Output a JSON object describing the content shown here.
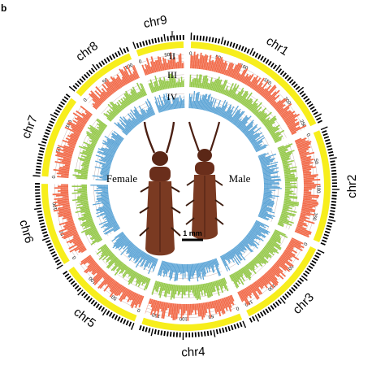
{
  "panel_letter": "b",
  "track_labels": [
    "I",
    "II",
    "III",
    "IV"
  ],
  "sex_labels": {
    "female": "Female",
    "male": "Male"
  },
  "scale_bar_label": "1 mm",
  "colors": {
    "track_I": "#f7ee1c",
    "track_II": "#f26b4a",
    "track_III": "#95c94a",
    "track_IV": "#5ba4d6",
    "grid": "#9d7a78",
    "ticks": "#000000",
    "beetle_body": "#7a3a22",
    "beetle_dark": "#4b1f12"
  },
  "chromosomes": [
    {
      "name": "chr1",
      "length": 260,
      "labels": [
        "0",
        "50",
        "100",
        "150",
        "200",
        "250"
      ]
    },
    {
      "name": "chr2",
      "length": 190,
      "labels": [
        "0",
        "50",
        "100",
        "150"
      ]
    },
    {
      "name": "chr3",
      "length": 160,
      "labels": [
        "0",
        "50",
        "100",
        "150"
      ]
    },
    {
      "name": "chr4",
      "length": 170,
      "labels": [
        "0",
        "50",
        "100",
        "150"
      ]
    },
    {
      "name": "chr5",
      "length": 140,
      "labels": [
        "0",
        "50",
        "100"
      ]
    },
    {
      "name": "chr6",
      "length": 140,
      "labels": [
        "0",
        "50",
        "100"
      ]
    },
    {
      "name": "chr7",
      "length": 140,
      "labels": [
        "0",
        "50",
        "100"
      ]
    },
    {
      "name": "chr8",
      "length": 110,
      "labels": [
        "0",
        "50",
        "100"
      ]
    },
    {
      "name": "chr9",
      "length": 80,
      "labels": [
        "0",
        "50"
      ]
    }
  ]
}
